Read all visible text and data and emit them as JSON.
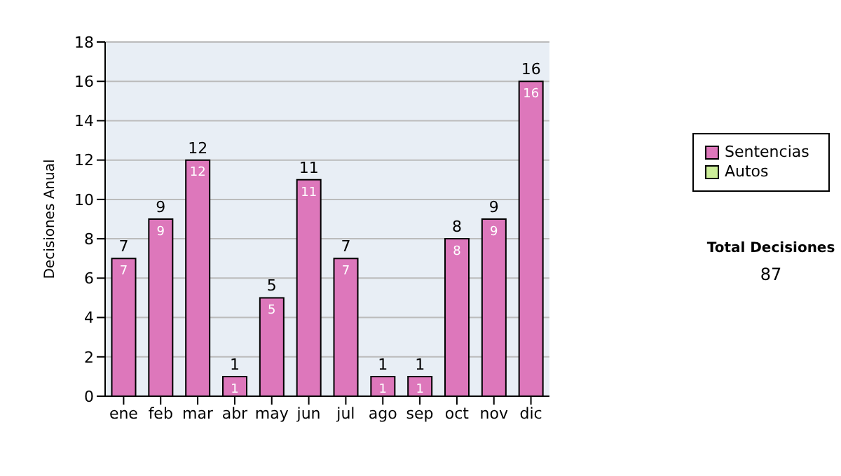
{
  "chart_data": {
    "type": "bar",
    "stacked": true,
    "ylabel": "Decisiones Anual",
    "categories": [
      "ene",
      "feb",
      "mar",
      "abr",
      "may",
      "jun",
      "jul",
      "ago",
      "sep",
      "oct",
      "nov",
      "dic"
    ],
    "series": [
      {
        "name": "Sentencias",
        "color": "#dd77bb",
        "values": [
          7,
          9,
          12,
          1,
          5,
          11,
          7,
          1,
          1,
          8,
          9,
          16
        ],
        "value_labels": [
          "7",
          "9",
          "12",
          "1",
          "5",
          "11",
          "7",
          "1",
          "1",
          "8",
          "9",
          "16"
        ]
      },
      {
        "name": "Autos",
        "color": "#ccee99",
        "values": [
          0,
          0,
          0,
          0,
          0,
          0,
          0,
          0,
          0,
          0,
          0,
          0
        ]
      }
    ],
    "totals": [
      "7",
      "9",
      "12",
      "1",
      "5",
      "11",
      "7",
      "1",
      "1",
      "8",
      "9",
      "16"
    ],
    "ylim": [
      0,
      18
    ],
    "yticks": [
      0,
      2,
      4,
      6,
      8,
      10,
      12,
      14,
      16,
      18
    ],
    "grid": "y",
    "legend": "right",
    "annotations": [
      "Total Decisiones",
      "87"
    ]
  }
}
